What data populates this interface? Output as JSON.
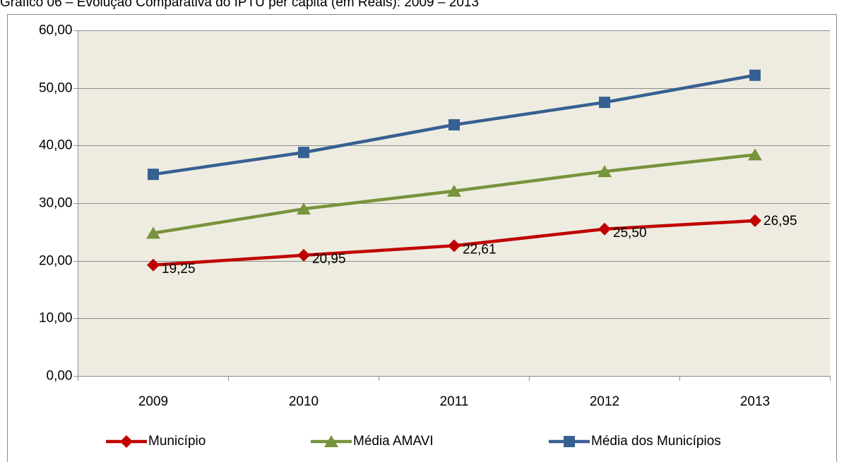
{
  "chart_data": {
    "type": "line",
    "title": "Gráfico 06 – Evolução Comparativa do IPTU per capita (em Reais): 2009 – 2013",
    "categories": [
      "2009",
      "2010",
      "2011",
      "2012",
      "2013"
    ],
    "series": [
      {
        "name": "Município",
        "color": "#c00000",
        "marker": "diamond",
        "values": [
          19.25,
          20.95,
          22.61,
          25.5,
          26.95
        ],
        "value_labels": [
          "19,25",
          "20,95",
          "22,61",
          "25,50",
          "26,95"
        ]
      },
      {
        "name": "Média AMAVI",
        "color": "#77933c",
        "marker": "triangle",
        "values": [
          24.8,
          29.0,
          32.1,
          35.5,
          38.4
        ]
      },
      {
        "name": "Média dos Municípios",
        "color": "#376092",
        "marker": "square",
        "values": [
          35.0,
          38.8,
          43.6,
          47.5,
          52.2
        ]
      }
    ],
    "ylim": [
      0,
      60
    ],
    "yticks": [
      {
        "value": 0,
        "label": "0,00"
      },
      {
        "value": 10,
        "label": "10,00"
      },
      {
        "value": 20,
        "label": "20,00"
      },
      {
        "value": 30,
        "label": "30,00"
      },
      {
        "value": 40,
        "label": "40,00"
      },
      {
        "value": 50,
        "label": "50,00"
      },
      {
        "value": 60,
        "label": "60,00"
      }
    ],
    "grid": true,
    "legend": "bottom"
  }
}
